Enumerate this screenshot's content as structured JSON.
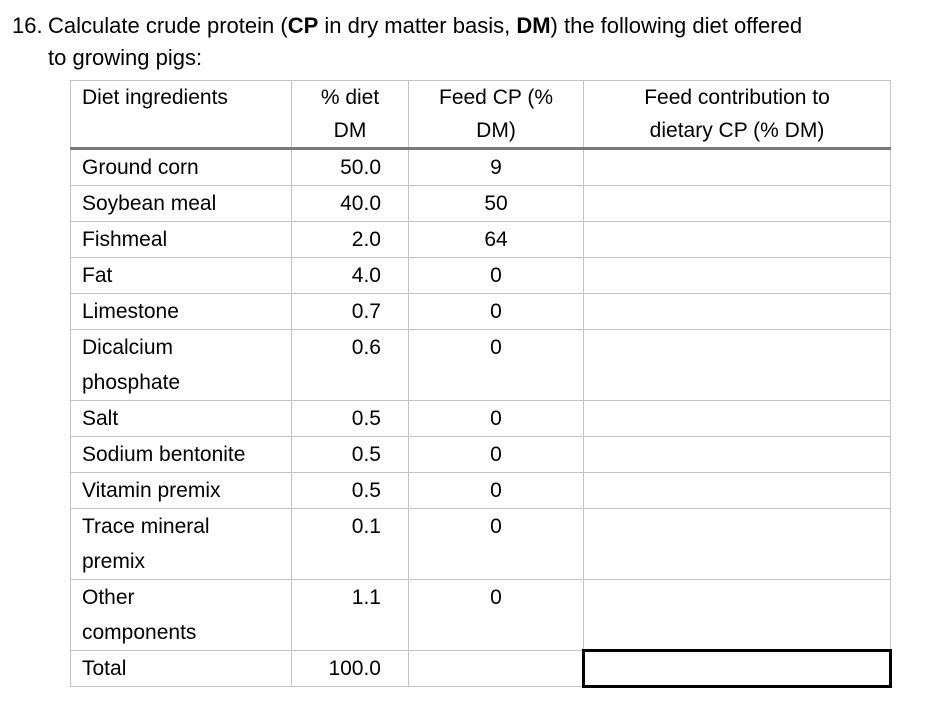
{
  "question": {
    "number": "16.",
    "parts": [
      {
        "text": "Calculate crude protein (",
        "bold": false
      },
      {
        "text": "CP",
        "bold": true
      },
      {
        "text": " in dry matter basis, ",
        "bold": false
      },
      {
        "text": "DM",
        "bold": true
      },
      {
        "text": ") the following diet offered",
        "bold": false
      }
    ],
    "line2": "to growing pigs:"
  },
  "table": {
    "headers": [
      "Diet ingredients",
      "% diet DM",
      "Feed CP (% DM)",
      "Feed contribution to dietary CP (% DM)"
    ],
    "rows": [
      {
        "ingredient": "Ground corn",
        "dm": "50.0",
        "cp": "9"
      },
      {
        "ingredient": "Soybean meal",
        "dm": "40.0",
        "cp": "50"
      },
      {
        "ingredient": "Fishmeal",
        "dm": "2.0",
        "cp": "64"
      },
      {
        "ingredient": "Fat",
        "dm": "4.0",
        "cp": "0"
      },
      {
        "ingredient": "Limestone",
        "dm": "0.7",
        "cp": "0"
      },
      {
        "ingredient": "Dicalcium phosphate",
        "dm": "0.6",
        "cp": "0"
      },
      {
        "ingredient": "Salt",
        "dm": "0.5",
        "cp": "0"
      },
      {
        "ingredient": "Sodium bentonite",
        "dm": "0.5",
        "cp": "0"
      },
      {
        "ingredient": "Vitamin premix",
        "dm": "0.5",
        "cp": "0"
      },
      {
        "ingredient": "Trace mineral premix",
        "dm": "0.1",
        "cp": "0"
      },
      {
        "ingredient": "Other components",
        "dm": "1.1",
        "cp": "0"
      },
      {
        "ingredient": "Total",
        "dm": "100.0"
      }
    ]
  }
}
